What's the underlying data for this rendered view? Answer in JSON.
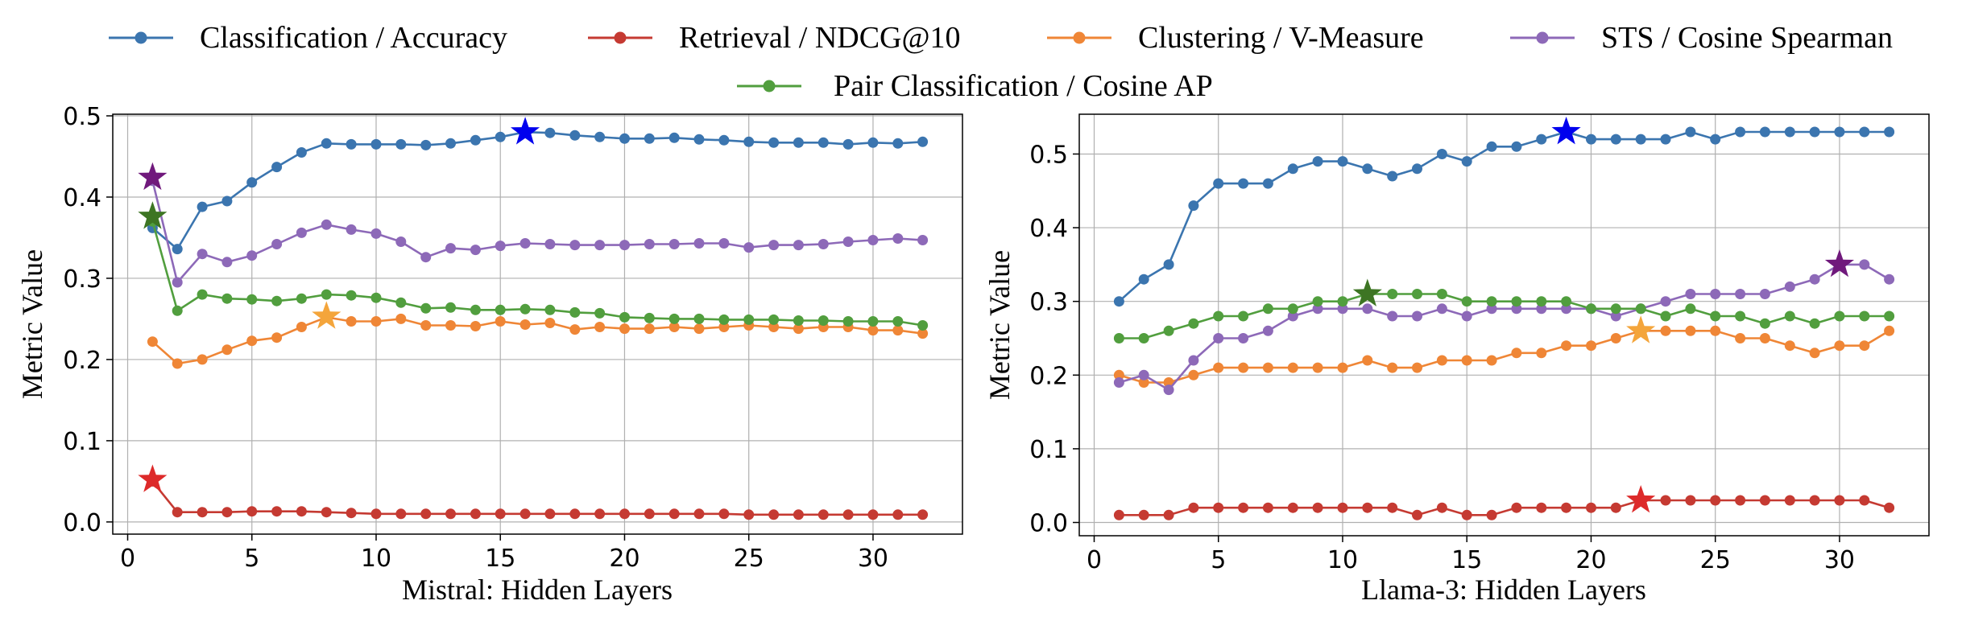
{
  "legend": {
    "items": [
      {
        "label": "Classification / Accuracy",
        "color": "#3b75af"
      },
      {
        "label": "Retrieval / NDCG@10",
        "color": "#c53a32"
      },
      {
        "label": "Clustering / V-Measure",
        "color": "#ef8636"
      },
      {
        "label": "STS / Cosine Spearman",
        "color": "#8d69b8"
      },
      {
        "label": "Pair Classification / Cosine AP",
        "color": "#519e3e"
      }
    ]
  },
  "chart_data": [
    {
      "type": "line",
      "xlabel": "Mistral: Hidden Layers",
      "ylabel": "Metric Value",
      "xlim": [
        -0.6,
        33.6
      ],
      "ylim": [
        -0.015,
        0.502
      ],
      "xticks": [
        0,
        5,
        10,
        15,
        20,
        25,
        30
      ],
      "yticks": [
        0.0,
        0.1,
        0.2,
        0.3,
        0.4,
        0.5
      ],
      "ytick_labels": [
        "0.0",
        "0.1",
        "0.2",
        "0.3",
        "0.4",
        "0.5"
      ],
      "grid": true,
      "x": [
        1,
        2,
        3,
        4,
        5,
        6,
        7,
        8,
        9,
        10,
        11,
        12,
        13,
        14,
        15,
        16,
        17,
        18,
        19,
        20,
        21,
        22,
        23,
        24,
        25,
        26,
        27,
        28,
        29,
        30,
        31,
        32
      ],
      "series": [
        {
          "name": "Classification / Accuracy",
          "color": "#3b75af",
          "values": [
            0.362,
            0.336,
            0.388,
            0.395,
            0.418,
            0.437,
            0.455,
            0.466,
            0.465,
            0.465,
            0.465,
            0.464,
            0.466,
            0.47,
            0.474,
            0.48,
            0.479,
            0.476,
            0.474,
            0.472,
            0.472,
            0.473,
            0.471,
            0.47,
            0.468,
            0.467,
            0.467,
            0.467,
            0.465,
            0.467,
            0.466,
            0.468
          ],
          "best": {
            "x": 16,
            "y": 0.48,
            "color": "#0000ee"
          }
        },
        {
          "name": "Retrieval / NDCG@10",
          "color": "#c53a32",
          "values": [
            0.05,
            0.012,
            0.012,
            0.012,
            0.013,
            0.013,
            0.013,
            0.012,
            0.011,
            0.01,
            0.01,
            0.01,
            0.01,
            0.01,
            0.01,
            0.01,
            0.01,
            0.01,
            0.01,
            0.01,
            0.01,
            0.01,
            0.01,
            0.01,
            0.009,
            0.009,
            0.009,
            0.009,
            0.009,
            0.009,
            0.009,
            0.009
          ],
          "best": {
            "x": 1,
            "y": 0.052,
            "color": "#dd2a2a"
          }
        },
        {
          "name": "Clustering / V-Measure",
          "color": "#ef8636",
          "values": [
            0.222,
            0.195,
            0.2,
            0.212,
            0.223,
            0.227,
            0.24,
            0.252,
            0.247,
            0.247,
            0.25,
            0.242,
            0.242,
            0.241,
            0.247,
            0.243,
            0.245,
            0.237,
            0.24,
            0.238,
            0.238,
            0.24,
            0.238,
            0.24,
            0.242,
            0.24,
            0.238,
            0.24,
            0.24,
            0.236,
            0.236,
            0.232
          ],
          "best": {
            "x": 8,
            "y": 0.253,
            "color": "#f4a53b"
          }
        },
        {
          "name": "STS / Cosine Spearman",
          "color": "#8d69b8",
          "values": [
            0.42,
            0.295,
            0.33,
            0.32,
            0.328,
            0.342,
            0.356,
            0.366,
            0.36,
            0.355,
            0.345,
            0.326,
            0.337,
            0.335,
            0.34,
            0.343,
            0.342,
            0.341,
            0.341,
            0.341,
            0.342,
            0.342,
            0.343,
            0.343,
            0.338,
            0.341,
            0.341,
            0.342,
            0.345,
            0.347,
            0.349,
            0.347
          ],
          "best": {
            "x": 1,
            "y": 0.424,
            "color": "#70197c"
          }
        },
        {
          "name": "Pair Classification / Cosine AP",
          "color": "#519e3e",
          "values": [
            0.37,
            0.26,
            0.28,
            0.275,
            0.274,
            0.272,
            0.275,
            0.28,
            0.279,
            0.276,
            0.27,
            0.263,
            0.264,
            0.261,
            0.261,
            0.262,
            0.261,
            0.258,
            0.257,
            0.252,
            0.251,
            0.25,
            0.25,
            0.249,
            0.249,
            0.249,
            0.248,
            0.248,
            0.247,
            0.247,
            0.247,
            0.242
          ],
          "best": {
            "x": 1,
            "y": 0.376,
            "color": "#3d7523"
          }
        }
      ]
    },
    {
      "type": "line",
      "xlabel": "Llama-3: Hidden Layers",
      "ylabel": "Metric Value",
      "xlim": [
        -0.6,
        33.6
      ],
      "ylim": [
        -0.018,
        0.554
      ],
      "xticks": [
        0,
        5,
        10,
        15,
        20,
        25,
        30
      ],
      "yticks": [
        0.0,
        0.1,
        0.2,
        0.3,
        0.4,
        0.5
      ],
      "ytick_labels": [
        "0.0",
        "0.1",
        "0.2",
        "0.3",
        "0.4",
        "0.5"
      ],
      "grid": true,
      "x": [
        1,
        2,
        3,
        4,
        5,
        6,
        7,
        8,
        9,
        10,
        11,
        12,
        13,
        14,
        15,
        16,
        17,
        18,
        19,
        20,
        21,
        22,
        23,
        24,
        25,
        26,
        27,
        28,
        29,
        30,
        31,
        32
      ],
      "series": [
        {
          "name": "Classification / Accuracy",
          "color": "#3b75af",
          "values": [
            0.3,
            0.33,
            0.35,
            0.43,
            0.46,
            0.46,
            0.46,
            0.48,
            0.49,
            0.49,
            0.48,
            0.47,
            0.48,
            0.5,
            0.49,
            0.51,
            0.51,
            0.52,
            0.53,
            0.52,
            0.52,
            0.52,
            0.52,
            0.53,
            0.52,
            0.53,
            0.53,
            0.53,
            0.53,
            0.53,
            0.53,
            0.53
          ],
          "best": {
            "x": 19,
            "y": 0.53,
            "color": "#0000ee"
          }
        },
        {
          "name": "Retrieval / NDCG@10",
          "color": "#c53a32",
          "values": [
            0.01,
            0.01,
            0.01,
            0.02,
            0.02,
            0.02,
            0.02,
            0.02,
            0.02,
            0.02,
            0.02,
            0.02,
            0.01,
            0.02,
            0.01,
            0.01,
            0.02,
            0.02,
            0.02,
            0.02,
            0.02,
            0.03,
            0.03,
            0.03,
            0.03,
            0.03,
            0.03,
            0.03,
            0.03,
            0.03,
            0.03,
            0.02
          ],
          "best": {
            "x": 22,
            "y": 0.03,
            "color": "#dd2a2a"
          }
        },
        {
          "name": "Clustering / V-Measure",
          "color": "#ef8636",
          "values": [
            0.2,
            0.19,
            0.19,
            0.2,
            0.21,
            0.21,
            0.21,
            0.21,
            0.21,
            0.21,
            0.22,
            0.21,
            0.21,
            0.22,
            0.22,
            0.22,
            0.23,
            0.23,
            0.24,
            0.24,
            0.25,
            0.26,
            0.26,
            0.26,
            0.26,
            0.25,
            0.25,
            0.24,
            0.23,
            0.24,
            0.24,
            0.26
          ],
          "best": {
            "x": 22,
            "y": 0.26,
            "color": "#f4a53b"
          }
        },
        {
          "name": "STS / Cosine Spearman",
          "color": "#8d69b8",
          "values": [
            0.19,
            0.2,
            0.18,
            0.22,
            0.25,
            0.25,
            0.26,
            0.28,
            0.29,
            0.29,
            0.29,
            0.28,
            0.28,
            0.29,
            0.28,
            0.29,
            0.29,
            0.29,
            0.29,
            0.29,
            0.28,
            0.29,
            0.3,
            0.31,
            0.31,
            0.31,
            0.31,
            0.32,
            0.33,
            0.35,
            0.35,
            0.33
          ],
          "best": {
            "x": 30,
            "y": 0.35,
            "color": "#70197c"
          }
        },
        {
          "name": "Pair Classification / Cosine AP",
          "color": "#519e3e",
          "values": [
            0.25,
            0.25,
            0.26,
            0.27,
            0.28,
            0.28,
            0.29,
            0.29,
            0.3,
            0.3,
            0.31,
            0.31,
            0.31,
            0.31,
            0.3,
            0.3,
            0.3,
            0.3,
            0.3,
            0.29,
            0.29,
            0.29,
            0.28,
            0.29,
            0.28,
            0.28,
            0.27,
            0.28,
            0.27,
            0.28,
            0.28,
            0.28
          ],
          "best": {
            "x": 11,
            "y": 0.31,
            "color": "#3d7523"
          }
        }
      ]
    }
  ]
}
